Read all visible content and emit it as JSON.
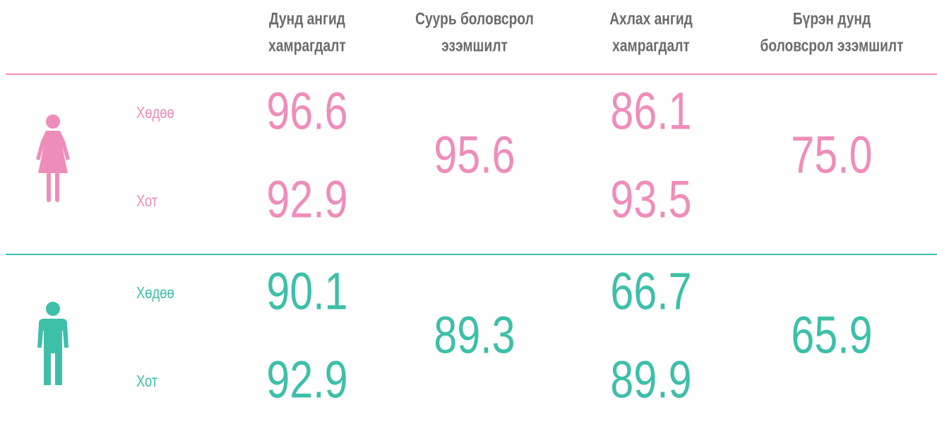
{
  "header": {
    "columns": [
      [
        "Дунд ангид",
        "хамрагдалт"
      ],
      [
        "Суурь боловсрол",
        "эзэмшилт"
      ],
      [
        "Ахлах ангид",
        "хамрагдалт"
      ],
      [
        "Бүрэн дунд",
        "боловсрол эзэмшилт"
      ]
    ]
  },
  "groups": [
    {
      "color": "#ef8dba",
      "rows": [
        {
          "label": "Хөдөө",
          "values": [
            "96.6",
            "86.1"
          ]
        },
        {
          "label": "Хот",
          "values": [
            "92.9",
            "93.5"
          ]
        }
      ],
      "merged": [
        "95.6",
        "75.0"
      ]
    },
    {
      "color": "#3ebfa8",
      "rows": [
        {
          "label": "Хөдөө",
          "values": [
            "90.1",
            "66.7"
          ]
        },
        {
          "label": "Хот",
          "values": [
            "92.9",
            "89.9"
          ]
        }
      ],
      "merged": [
        "89.3",
        "65.9"
      ]
    }
  ]
}
